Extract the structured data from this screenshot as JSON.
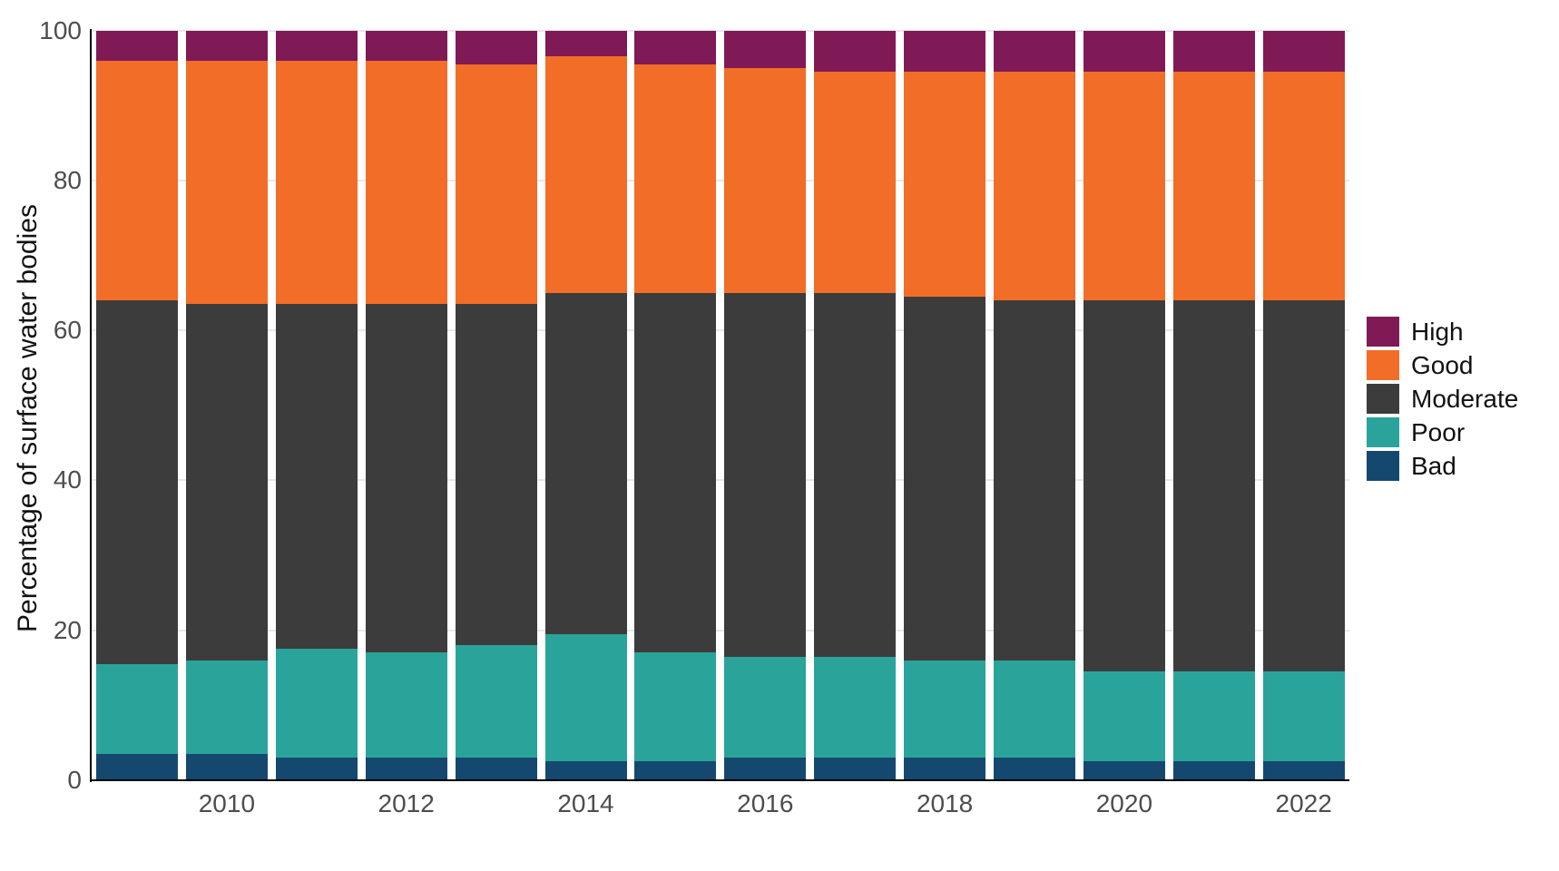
{
  "chart_data": {
    "type": "bar",
    "stacked": true,
    "title": "",
    "xlabel": "",
    "ylabel": "Percentage of surface water bodies",
    "ylim": [
      0,
      100
    ],
    "y_ticks": [
      0,
      20,
      40,
      60,
      80,
      100
    ],
    "x_tick_labels": [
      "2010",
      "2012",
      "2014",
      "2016",
      "2018",
      "2020",
      "2022"
    ],
    "grid": "horizontal",
    "categories": [
      2009,
      2010,
      2011,
      2012,
      2013,
      2014,
      2015,
      2016,
      2017,
      2018,
      2019,
      2020,
      2021,
      2022
    ],
    "series": [
      {
        "name": "Bad",
        "color": "#15486f",
        "values": [
          3.5,
          3.5,
          3.0,
          3.0,
          3.0,
          2.5,
          2.5,
          3.0,
          3.0,
          3.0,
          3.0,
          2.5,
          2.5,
          2.5
        ]
      },
      {
        "name": "Poor",
        "color": "#2aa49a",
        "values": [
          12.0,
          12.5,
          14.5,
          14.0,
          15.0,
          17.0,
          14.5,
          13.5,
          13.5,
          13.0,
          13.0,
          12.0,
          12.0,
          12.0
        ]
      },
      {
        "name": "Moderate",
        "color": "#3d3c3c",
        "values": [
          48.5,
          47.5,
          46.0,
          46.5,
          45.5,
          45.5,
          48.0,
          48.5,
          48.5,
          48.5,
          48.0,
          49.5,
          49.5,
          49.5
        ]
      },
      {
        "name": "Good",
        "color": "#f26d27",
        "values": [
          32.0,
          32.5,
          32.5,
          32.5,
          32.0,
          31.5,
          30.5,
          30.0,
          29.5,
          30.0,
          30.5,
          30.5,
          30.5,
          30.5
        ]
      },
      {
        "name": "High",
        "color": "#801a56",
        "values": [
          4.0,
          4.0,
          4.0,
          4.0,
          4.5,
          3.5,
          4.5,
          5.0,
          5.5,
          5.5,
          5.5,
          5.5,
          5.5,
          5.5
        ]
      }
    ],
    "legend": {
      "position": "right",
      "entries": [
        "High",
        "Good",
        "Moderate",
        "Poor",
        "Bad"
      ]
    },
    "axis_colors": {
      "axis_line": "#000000",
      "tick_label": "#4d4d4d",
      "gridline": "#e8e8e8"
    }
  }
}
